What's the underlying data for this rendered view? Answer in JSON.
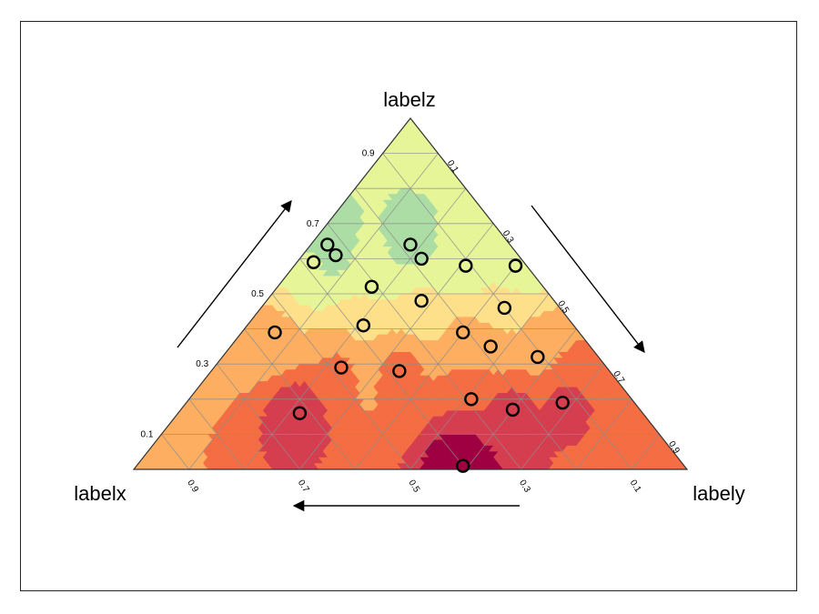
{
  "chart_data": {
    "type": "ternary-contour-scatter",
    "title": "",
    "axes": {
      "x": {
        "label": "labelx",
        "ticks": [
          "0.9",
          "0.7",
          "0.5",
          "0.3",
          "0.1"
        ]
      },
      "y": {
        "label": "labely",
        "ticks": [
          "0.9",
          "0.7",
          "0.5",
          "0.3",
          "0.1"
        ]
      },
      "z": {
        "label": "labelz",
        "ticks": [
          "0.9",
          "0.7",
          "0.5",
          "0.3",
          "0.1"
        ]
      }
    },
    "grid": true,
    "grid_step": 0.1,
    "colormap": "Spectral",
    "color_levels": [
      "#9e0142",
      "#d53e4f",
      "#f46d43",
      "#fdae61",
      "#fee08b",
      "#e6f598",
      "#abdda4",
      "#66c2a5",
      "#3288bd",
      "#5e4fa2"
    ],
    "contour_field": "z",
    "points": [
      {
        "x": 0.33,
        "y": 0.03,
        "z": 0.64
      },
      {
        "x": 0.33,
        "y": 0.06,
        "z": 0.61
      },
      {
        "x": 0.38,
        "y": 0.03,
        "z": 0.59
      },
      {
        "x": 0.18,
        "y": 0.22,
        "z": 0.6
      },
      {
        "x": 0.18,
        "y": 0.18,
        "z": 0.64
      },
      {
        "x": 0.11,
        "y": 0.31,
        "z": 0.58
      },
      {
        "x": 0.02,
        "y": 0.4,
        "z": 0.58
      },
      {
        "x": 0.31,
        "y": 0.17,
        "z": 0.52
      },
      {
        "x": 0.24,
        "y": 0.28,
        "z": 0.48
      },
      {
        "x": 0.1,
        "y": 0.44,
        "z": 0.46
      },
      {
        "x": 0.55,
        "y": 0.06,
        "z": 0.39
      },
      {
        "x": 0.38,
        "y": 0.21,
        "z": 0.41
      },
      {
        "x": 0.21,
        "y": 0.4,
        "z": 0.39
      },
      {
        "x": 0.18,
        "y": 0.47,
        "z": 0.35
      },
      {
        "x": 0.13,
        "y": 0.68,
        "z": 0.19
      },
      {
        "x": 0.48,
        "y": 0.23,
        "z": 0.29
      },
      {
        "x": 0.11,
        "y": 0.57,
        "z": 0.32
      },
      {
        "x": 0.38,
        "y": 0.34,
        "z": 0.28
      },
      {
        "x": 0.62,
        "y": 0.22,
        "z": 0.16
      },
      {
        "x": 0.29,
        "y": 0.51,
        "z": 0.2
      },
      {
        "x": 0.23,
        "y": 0.6,
        "z": 0.17
      },
      {
        "x": 0.4,
        "y": 0.59,
        "z": 0.01
      }
    ]
  }
}
